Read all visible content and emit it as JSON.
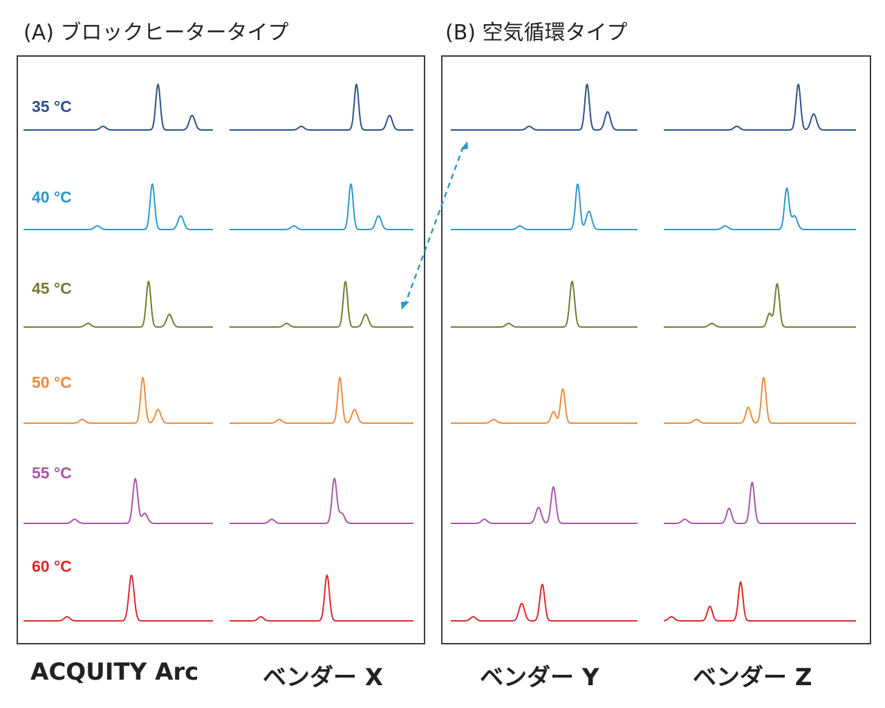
{
  "panels": [
    {
      "title": "(A) ブロックヒータータイプ"
    },
    {
      "title": "(B) 空気循環タイプ"
    }
  ],
  "chart_data": {
    "type": "line",
    "title": "",
    "xlabel": "",
    "ylabel": "",
    "grid": false,
    "columns": [
      "ACQUITY Arc",
      "ベンダー X",
      "ベンダー Y",
      "ベンダー Z"
    ],
    "temperatures": [
      {
        "label": "35 °C",
        "color": "#2a4f86"
      },
      {
        "label": "40 °C",
        "color": "#2a97cc"
      },
      {
        "label": "45 °C",
        "color": "#737a2e"
      },
      {
        "label": "50 °C",
        "color": "#ee8a3c"
      },
      {
        "label": "55 °C",
        "color": "#a855a8"
      },
      {
        "label": "60 °C",
        "color": "#e0262b"
      }
    ],
    "traces": [
      [
        {
          "peaks": [
            [
              0.42,
              0.08,
              0.015
            ],
            [
              0.71,
              1.0,
              0.012
            ],
            [
              0.89,
              0.32,
              0.015
            ]
          ]
        },
        {
          "peaks": [
            [
              0.39,
              0.08,
              0.015
            ],
            [
              0.68,
              1.0,
              0.012
            ],
            [
              0.83,
              0.3,
              0.015
            ]
          ]
        },
        {
          "peaks": [
            [
              0.34,
              0.08,
              0.015
            ],
            [
              0.66,
              1.0,
              0.012
            ],
            [
              0.77,
              0.28,
              0.015
            ]
          ]
        },
        {
          "peaks": [
            [
              0.31,
              0.08,
              0.015
            ],
            [
              0.63,
              1.0,
              0.012
            ],
            [
              0.71,
              0.3,
              0.015
            ]
          ]
        },
        {
          "peaks": [
            [
              0.27,
              0.09,
              0.015
            ],
            [
              0.59,
              0.98,
              0.013
            ],
            [
              0.64,
              0.22,
              0.015
            ]
          ]
        },
        {
          "peaks": [
            [
              0.23,
              0.09,
              0.015
            ],
            [
              0.57,
              1.0,
              0.014
            ]
          ]
        }
      ],
      [
        {
          "peaks": [
            [
              0.39,
              0.08,
              0.015
            ],
            [
              0.69,
              1.0,
              0.012
            ],
            [
              0.87,
              0.32,
              0.015
            ]
          ]
        },
        {
          "peaks": [
            [
              0.35,
              0.08,
              0.015
            ],
            [
              0.66,
              1.0,
              0.012
            ],
            [
              0.81,
              0.3,
              0.015
            ]
          ]
        },
        {
          "peaks": [
            [
              0.31,
              0.08,
              0.015
            ],
            [
              0.63,
              1.0,
              0.012
            ],
            [
              0.74,
              0.28,
              0.015
            ]
          ]
        },
        {
          "peaks": [
            [
              0.27,
              0.08,
              0.015
            ],
            [
              0.6,
              1.0,
              0.012
            ],
            [
              0.68,
              0.3,
              0.015
            ]
          ]
        },
        {
          "peaks": [
            [
              0.23,
              0.09,
              0.015
            ],
            [
              0.57,
              0.98,
              0.013
            ],
            [
              0.61,
              0.22,
              0.015
            ]
          ]
        },
        {
          "peaks": [
            [
              0.17,
              0.09,
              0.015
            ],
            [
              0.53,
              1.0,
              0.013
            ]
          ]
        }
      ],
      [
        {
          "peaks": [
            [
              0.42,
              0.08,
              0.015
            ],
            [
              0.73,
              1.0,
              0.012
            ],
            [
              0.84,
              0.4,
              0.015
            ]
          ]
        },
        {
          "peaks": [
            [
              0.37,
              0.08,
              0.015
            ],
            [
              0.68,
              1.0,
              0.012
            ],
            [
              0.74,
              0.4,
              0.015
            ]
          ]
        },
        {
          "peaks": [
            [
              0.31,
              0.08,
              0.015
            ],
            [
              0.65,
              1.0,
              0.013
            ]
          ]
        },
        {
          "peaks": [
            [
              0.23,
              0.08,
              0.015
            ],
            [
              0.55,
              0.25,
              0.013
            ],
            [
              0.6,
              0.75,
              0.012
            ]
          ]
        },
        {
          "peaks": [
            [
              0.18,
              0.09,
              0.015
            ],
            [
              0.47,
              0.35,
              0.015
            ],
            [
              0.55,
              0.8,
              0.013
            ]
          ]
        },
        {
          "peaks": [
            [
              0.12,
              0.09,
              0.015
            ],
            [
              0.38,
              0.38,
              0.015
            ],
            [
              0.49,
              0.8,
              0.013
            ]
          ]
        }
      ],
      [
        {
          "peaks": [
            [
              0.38,
              0.08,
              0.015
            ],
            [
              0.7,
              1.0,
              0.012
            ],
            [
              0.78,
              0.35,
              0.015
            ]
          ]
        },
        {
          "peaks": [
            [
              0.32,
              0.08,
              0.015
            ],
            [
              0.64,
              0.9,
              0.012
            ],
            [
              0.68,
              0.3,
              0.015
            ]
          ]
        },
        {
          "peaks": [
            [
              0.25,
              0.08,
              0.015
            ],
            [
              0.55,
              0.3,
              0.012
            ],
            [
              0.59,
              0.95,
              0.012
            ]
          ]
        },
        {
          "peaks": [
            [
              0.17,
              0.08,
              0.015
            ],
            [
              0.44,
              0.35,
              0.013
            ],
            [
              0.52,
              1.0,
              0.012
            ]
          ]
        },
        {
          "peaks": [
            [
              0.11,
              0.09,
              0.015
            ],
            [
              0.34,
              0.33,
              0.013
            ],
            [
              0.46,
              0.9,
              0.012
            ]
          ]
        },
        {
          "peaks": [
            [
              0.04,
              0.09,
              0.015
            ],
            [
              0.24,
              0.32,
              0.013
            ],
            [
              0.4,
              0.85,
              0.012
            ]
          ]
        }
      ]
    ],
    "annotations": [
      {
        "type": "double-arrow",
        "style": "dashed",
        "color": "#2a97cc"
      }
    ]
  }
}
